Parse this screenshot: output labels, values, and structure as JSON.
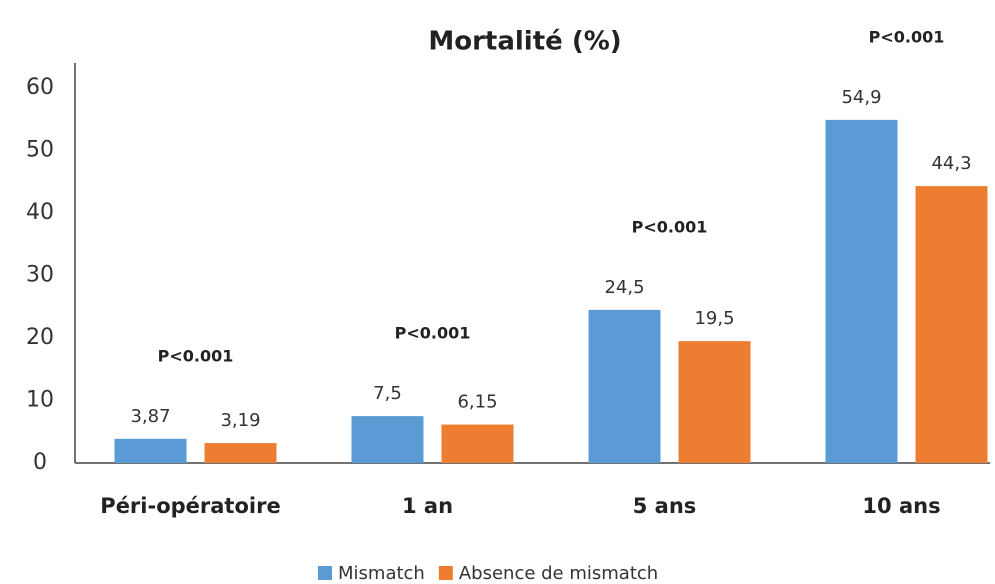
{
  "chart_data": {
    "type": "bar",
    "title": "Mortalité (%)",
    "categories": [
      "Péri-opératoire",
      "1 an",
      "5 ans",
      "10 ans"
    ],
    "series": [
      {
        "name": "Mismatch",
        "color": "#5b9bd5",
        "values": [
          3.87,
          7.5,
          24.5,
          54.9
        ],
        "value_labels": [
          "3,87",
          "7,5",
          "24,5",
          "54,9"
        ]
      },
      {
        "name": "Absence de mismatch",
        "color": "#ed7d31",
        "values": [
          3.19,
          6.15,
          19.5,
          44.3
        ],
        "value_labels": [
          "3,19",
          "6,15",
          "19,5",
          "44,3"
        ]
      }
    ],
    "annotations": [
      "P<0.001",
      "P<0.001",
      "P<0.001",
      "P<0.001"
    ],
    "ylim": [
      0,
      64
    ],
    "yticks": [
      0,
      10,
      20,
      30,
      40,
      50,
      60
    ],
    "grid": false,
    "legend": "bottom"
  }
}
